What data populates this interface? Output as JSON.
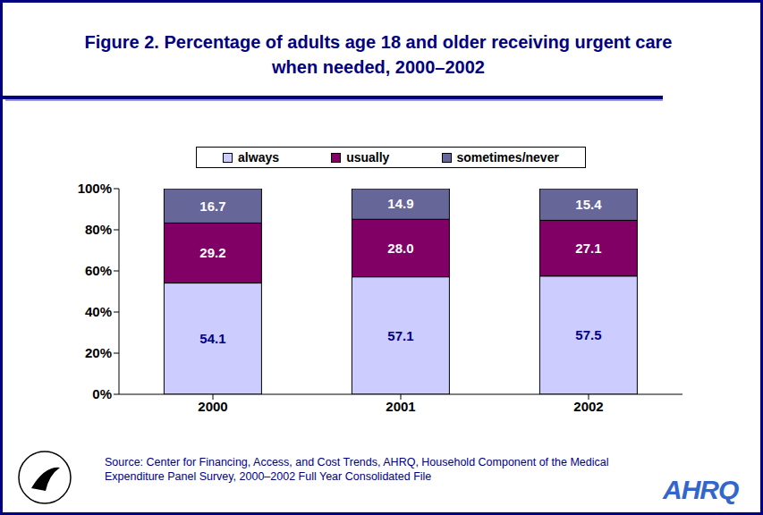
{
  "chart_data": {
    "type": "bar",
    "title": "Figure 2. Percentage of adults age 18 and older receiving urgent care when needed, 2000–2002",
    "categories": [
      "2000",
      "2001",
      "2002"
    ],
    "series": [
      {
        "name": "always",
        "color": "#ccccff",
        "values": [
          54.1,
          57.1,
          57.5
        ],
        "value_labels": [
          "54.1",
          "57.1",
          "57.5"
        ]
      },
      {
        "name": "usually",
        "color": "#800066",
        "values": [
          29.2,
          28.0,
          27.1
        ],
        "value_labels": [
          "29.2",
          "28.0",
          "27.1"
        ]
      },
      {
        "name": "sometimes/never",
        "color": "#666699",
        "values": [
          16.7,
          14.9,
          15.4
        ],
        "value_labels": [
          "16.7",
          "14.9",
          "15.4"
        ]
      }
    ],
    "stacked": true,
    "data_labels": true,
    "grid": false,
    "legend": "top",
    "ylim": [
      0,
      100
    ],
    "yticks": [
      {
        "value": 0,
        "label": "0%"
      },
      {
        "value": 20,
        "label": "20%"
      },
      {
        "value": 40,
        "label": "40%"
      },
      {
        "value": 60,
        "label": "60%"
      },
      {
        "value": 80,
        "label": "80%"
      },
      {
        "value": 100,
        "label": "100%"
      }
    ],
    "source": "Source: Center for Financing, Access, and Cost Trends, AHRQ, Household Component of the Medical Expenditure Panel Survey, 2000–2002 Full Year Consolidated File",
    "logo_text": "AHRQ"
  }
}
